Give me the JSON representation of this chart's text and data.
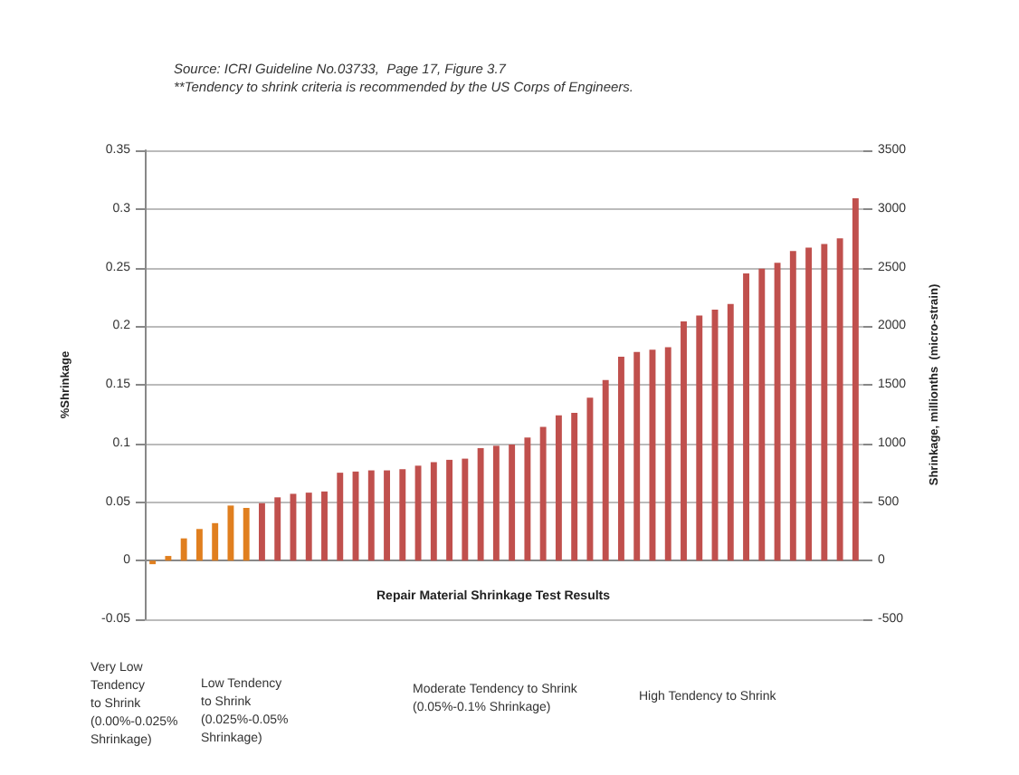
{
  "chart_data": {
    "type": "bar",
    "annotations": [
      "Source: ICRI Guideline No.03733,  Page 17, Figure 3.7",
      "**Tendency to shrink criteria is recommended by the US Corps of Engineers.",
      "Repair Material Shrinkage Test Results",
      "Very Low\nTendency\nto Shrink\n(0.00%-0.025%\nShrinkage)",
      "Low Tendency\nto Shrink\n(0.025%-0.05%\nShrinkage)",
      "Moderate Tendency to Shrink\n(0.05%-0.1% Shrinkage)",
      "High Tendency to Shrink"
    ],
    "ylabel": "%Shrinkage",
    "y2label": "Shrinkage, millionths  (micro-strain)",
    "categories": [
      null,
      null,
      null,
      null,
      null,
      null,
      null,
      null,
      null,
      null,
      null,
      null,
      null,
      null,
      null,
      null,
      null,
      null,
      null,
      null,
      null,
      null,
      null,
      null,
      null,
      null,
      null,
      null,
      null,
      null,
      null,
      null,
      null,
      null,
      null,
      null,
      null,
      null,
      null,
      null,
      null,
      null,
      null,
      null,
      null,
      null
    ],
    "values": [
      -0.003,
      0.004,
      0.019,
      0.027,
      0.032,
      0.047,
      0.045,
      0.049,
      0.054,
      0.057,
      0.058,
      0.059,
      0.075,
      0.076,
      0.077,
      0.077,
      0.078,
      0.081,
      0.084,
      0.086,
      0.087,
      0.096,
      0.098,
      0.099,
      0.105,
      0.114,
      0.124,
      0.126,
      0.139,
      0.154,
      0.174,
      0.178,
      0.18,
      0.182,
      0.204,
      0.209,
      0.214,
      0.219,
      0.245,
      0.249,
      0.254,
      0.264,
      0.267,
      0.27,
      0.275,
      0.309
    ],
    "colors": [
      "#e07f1f",
      "#e07f1f",
      "#e07f1f",
      "#e07f1f",
      "#e07f1f",
      "#e07f1f",
      "#e07f1f",
      "#c0504d",
      "#c0504d",
      "#c0504d",
      "#c0504d",
      "#c0504d",
      "#c0504d",
      "#c0504d",
      "#c0504d",
      "#c0504d",
      "#c0504d",
      "#c0504d",
      "#c0504d",
      "#c0504d",
      "#c0504d",
      "#c0504d",
      "#c0504d",
      "#c0504d",
      "#c0504d",
      "#c0504d",
      "#c0504d",
      "#c0504d",
      "#c0504d",
      "#c0504d",
      "#c0504d",
      "#c0504d",
      "#c0504d",
      "#c0504d",
      "#c0504d",
      "#c0504d",
      "#c0504d",
      "#c0504d",
      "#c0504d",
      "#c0504d",
      "#c0504d",
      "#c0504d",
      "#c0504d",
      "#c0504d",
      "#c0504d",
      "#c0504d"
    ],
    "ylim": [
      -0.05,
      0.35
    ],
    "yticks": [
      -0.05,
      0,
      0.05,
      0.1,
      0.15,
      0.2,
      0.25,
      0.3,
      0.35
    ],
    "y2lim": [
      -500,
      3500
    ],
    "y2ticks": [
      -500,
      0,
      500,
      1000,
      1500,
      2000,
      2500,
      3000,
      3500
    ],
    "grid": true
  }
}
